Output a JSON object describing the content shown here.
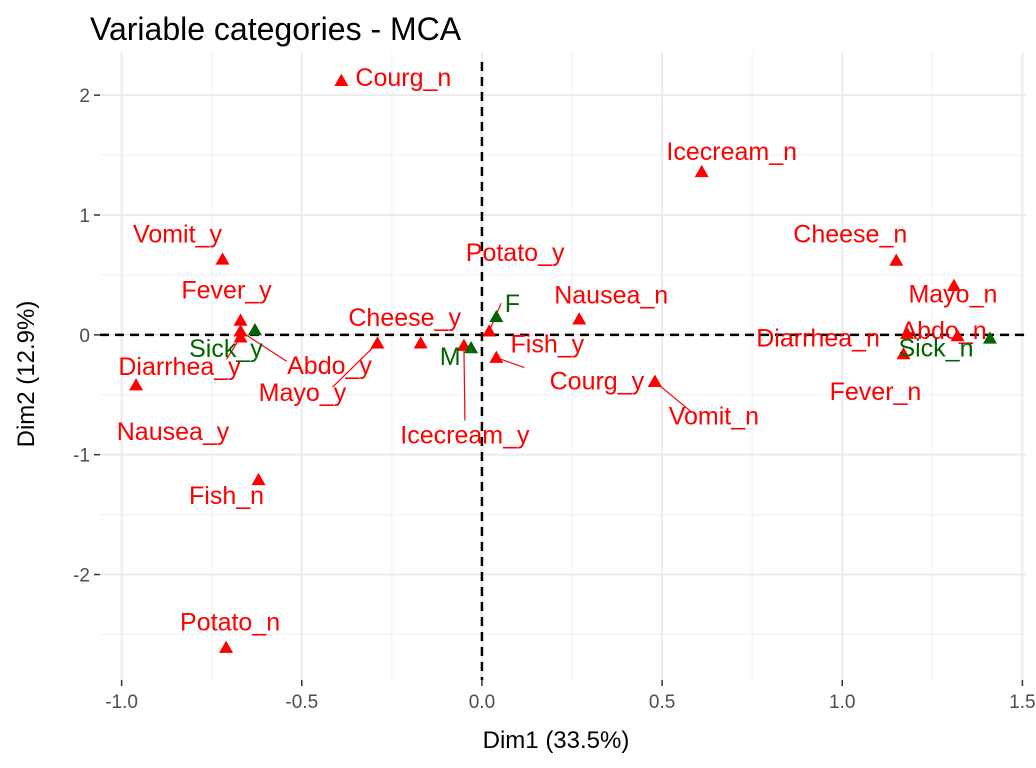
{
  "chart_data": {
    "type": "scatter",
    "title": "Variable categories - MCA",
    "xlabel": "Dim1 (33.5%)",
    "ylabel": "Dim2 (12.9%)",
    "xlim": [
      -1.06,
      1.51
    ],
    "ylim": [
      -2.88,
      2.36
    ],
    "xticks": [
      -1.0,
      -0.5,
      0.0,
      0.5,
      1.0,
      1.5
    ],
    "xtick_labels": [
      "-1.0",
      "-0.5",
      "0.0",
      "0.5",
      "1.0",
      "1.5"
    ],
    "yticks": [
      -2,
      -1,
      0,
      1,
      2
    ],
    "ytick_labels": [
      "-2",
      "-1",
      "0",
      "1",
      "2"
    ],
    "grid": true,
    "reference_lines": {
      "x": 0,
      "y": 0,
      "style": "dashed"
    },
    "colors": {
      "red": "#ff0000",
      "green": "#006400"
    },
    "points": [
      {
        "label": "Courg_n",
        "x": -0.39,
        "y": 2.12,
        "group": "red"
      },
      {
        "label": "Icecream_n",
        "x": 0.61,
        "y": 1.36,
        "group": "red"
      },
      {
        "label": "Vomit_y",
        "x": -0.72,
        "y": 0.63,
        "group": "red"
      },
      {
        "label": "Cheese_n",
        "x": 1.15,
        "y": 0.62,
        "group": "red"
      },
      {
        "label": "Potato_y",
        "x": 0.02,
        "y": 0.03,
        "group": "red"
      },
      {
        "label": "Mayo_n",
        "x": 1.31,
        "y": 0.41,
        "group": "red"
      },
      {
        "label": "Fever_y",
        "x": -0.67,
        "y": 0.12,
        "group": "red"
      },
      {
        "label": "Nausea_n",
        "x": 0.27,
        "y": 0.13,
        "group": "red"
      },
      {
        "label": "Cheese_y",
        "x": -0.17,
        "y": -0.07,
        "group": "red"
      },
      {
        "label": "Abdo_n",
        "x": 1.32,
        "y": -0.01,
        "group": "red"
      },
      {
        "label": "Diarrhea_n",
        "x": 1.18,
        "y": 0.01,
        "group": "red"
      },
      {
        "label": "Abdo_y",
        "x": -0.67,
        "y": 0.03,
        "group": "red"
      },
      {
        "label": "Diarrhea_y",
        "x": -0.67,
        "y": -0.02,
        "group": "red"
      },
      {
        "label": "Mayo_y",
        "x": -0.29,
        "y": -0.07,
        "group": "red"
      },
      {
        "label": "Fish_y",
        "x": 0.04,
        "y": -0.19,
        "group": "red"
      },
      {
        "label": "Icecream_y",
        "x": -0.05,
        "y": -0.09,
        "group": "red"
      },
      {
        "label": "Fever_n",
        "x": 1.17,
        "y": -0.16,
        "group": "red"
      },
      {
        "label": "Courg_y",
        "x": 0.48,
        "y": -0.39,
        "group": "red"
      },
      {
        "label": "Vomit_n",
        "x": 0.48,
        "y": -0.39,
        "group": "red"
      },
      {
        "label": "Nausea_y",
        "x": -0.96,
        "y": -0.42,
        "group": "red"
      },
      {
        "label": "Fish_n",
        "x": -0.62,
        "y": -1.21,
        "group": "red"
      },
      {
        "label": "Potato_n",
        "x": -0.71,
        "y": -2.61,
        "group": "red"
      },
      {
        "label": "F",
        "x": 0.04,
        "y": 0.15,
        "group": "green"
      },
      {
        "label": "Sick_y",
        "x": -0.63,
        "y": 0.04,
        "group": "green"
      },
      {
        "label": "M",
        "x": -0.03,
        "y": -0.11,
        "group": "green"
      },
      {
        "label": "Sick_n",
        "x": 1.41,
        "y": -0.03,
        "group": "green"
      }
    ]
  }
}
